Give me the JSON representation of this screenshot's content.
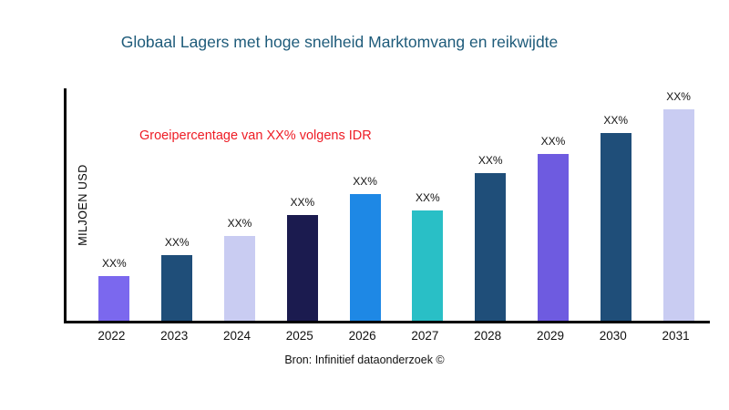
{
  "chart_data": {
    "type": "bar",
    "title": "Globaal Lagers met hoge snelheid Marktomvang en reikwijdte",
    "ylabel": "MILJOEN USD",
    "xlabel": "",
    "annotation": "Groeipercentage van XX% volgens IDR",
    "source": "Bron: Infinitief dataonderzoek ©",
    "categories": [
      "2022",
      "2023",
      "2024",
      "2025",
      "2026",
      "2027",
      "2028",
      "2029",
      "2030",
      "2031"
    ],
    "values": [
      21,
      31,
      40,
      50,
      60,
      52,
      70,
      79,
      89,
      100
    ],
    "value_labels": [
      "XX%",
      "XX%",
      "XX%",
      "XX%",
      "XX%",
      "XX%",
      "XX%",
      "XX%",
      "XX%",
      "XX%"
    ],
    "bar_colors": [
      "#7b68ee",
      "#1f4e79",
      "#c9ccf2",
      "#1b1b4f",
      "#1e88e5",
      "#29bfc6",
      "#1f4e79",
      "#6e5be0",
      "#1f4e79",
      "#c9ccf2"
    ],
    "ylim": [
      0,
      110
    ],
    "grid": false,
    "legend": false,
    "colors": {
      "title": "#1e5b7a",
      "annotation": "#ee1c25",
      "axis": "#000000"
    }
  }
}
